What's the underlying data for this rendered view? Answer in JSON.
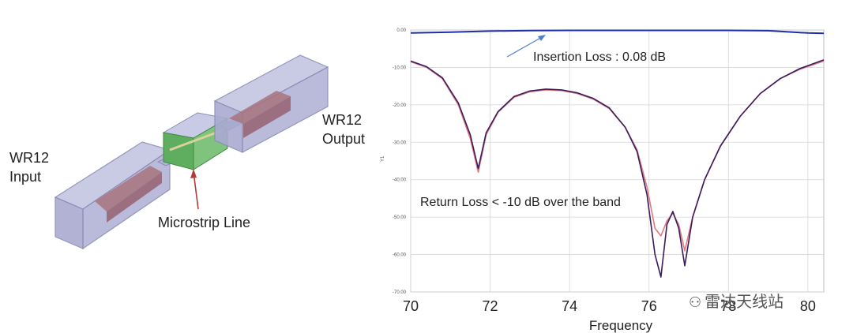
{
  "diagram": {
    "label_input_line1": "WR12",
    "label_input_line2": "Input",
    "label_output_line1": "WR12",
    "label_output_line2": "Output",
    "label_microstrip": "Microstrip Line",
    "colors": {
      "box_fill": "#b7b8da",
      "box_stroke": "#8a8bb5",
      "probe_fill": "#a8737e",
      "substrate_fill": "#5fae5f",
      "arrow": "#b33a3a"
    }
  },
  "chart_data": {
    "type": "line",
    "xlabel": "Frequency",
    "ylabel": "Y1",
    "xlim": [
      70,
      80.4
    ],
    "ylim": [
      -70,
      0
    ],
    "x_ticks": [
      "70",
      "72",
      "74",
      "76",
      "78",
      "80"
    ],
    "y_ticks": [
      "0.00",
      "-10.00",
      "-20.00",
      "-30.00",
      "-40.00",
      "-50.00",
      "-60.00",
      "-70.00"
    ],
    "grid": true,
    "annotations": [
      {
        "text": "Insertion Loss : 0.08 dB"
      },
      {
        "text": "Return Loss < -10 dB over the band"
      }
    ],
    "series": [
      {
        "color": "#1f2fa8",
        "x": [
          70,
          71,
          72,
          73,
          74,
          75,
          76,
          77,
          78,
          79,
          80,
          80.4
        ],
        "y": [
          -0.8,
          -0.6,
          -0.3,
          -0.15,
          -0.1,
          -0.1,
          -0.1,
          -0.1,
          -0.1,
          -0.2,
          -0.8,
          -0.9
        ]
      },
      {
        "color": "#e07a80",
        "x": [
          70,
          70.4,
          70.8,
          71.2,
          71.5,
          71.7,
          71.9,
          72.2,
          72.6,
          73.0,
          73.4,
          73.8,
          74.2,
          74.6,
          75.0,
          75.4,
          75.7,
          75.95,
          76.15,
          76.3,
          76.45,
          76.6,
          76.75,
          76.9,
          77.1,
          77.4,
          77.8,
          78.3,
          78.8,
          79.3,
          79.8,
          80.4
        ],
        "y": [
          -8.5,
          -10,
          -13,
          -20,
          -29,
          -38,
          -28,
          -22,
          -18,
          -16.5,
          -16,
          -16.2,
          -17,
          -18.5,
          -21,
          -26,
          -32,
          -42,
          -53,
          -55,
          -51,
          -49,
          -52,
          -59,
          -50,
          -40,
          -31,
          -23,
          -17,
          -13,
          -10.5,
          -8.3
        ]
      },
      {
        "color": "#3b1b5c",
        "x": [
          70,
          70.4,
          70.8,
          71.2,
          71.5,
          71.7,
          71.9,
          72.2,
          72.6,
          73.0,
          73.4,
          73.8,
          74.2,
          74.6,
          75.0,
          75.4,
          75.7,
          75.95,
          76.15,
          76.3,
          76.45,
          76.6,
          76.75,
          76.9,
          77.1,
          77.4,
          77.8,
          78.3,
          78.8,
          79.3,
          79.8,
          80.4
        ],
        "y": [
          -8.3,
          -9.8,
          -12.8,
          -19.5,
          -28,
          -37,
          -27.5,
          -21.8,
          -17.8,
          -16.3,
          -15.8,
          -16,
          -16.8,
          -18.3,
          -20.8,
          -26,
          -32.5,
          -44,
          -60,
          -66,
          -52,
          -48.5,
          -53,
          -63,
          -50,
          -40,
          -31,
          -23,
          -17,
          -13,
          -10.3,
          -8
        ]
      }
    ]
  },
  "watermark": "雷达天线站"
}
